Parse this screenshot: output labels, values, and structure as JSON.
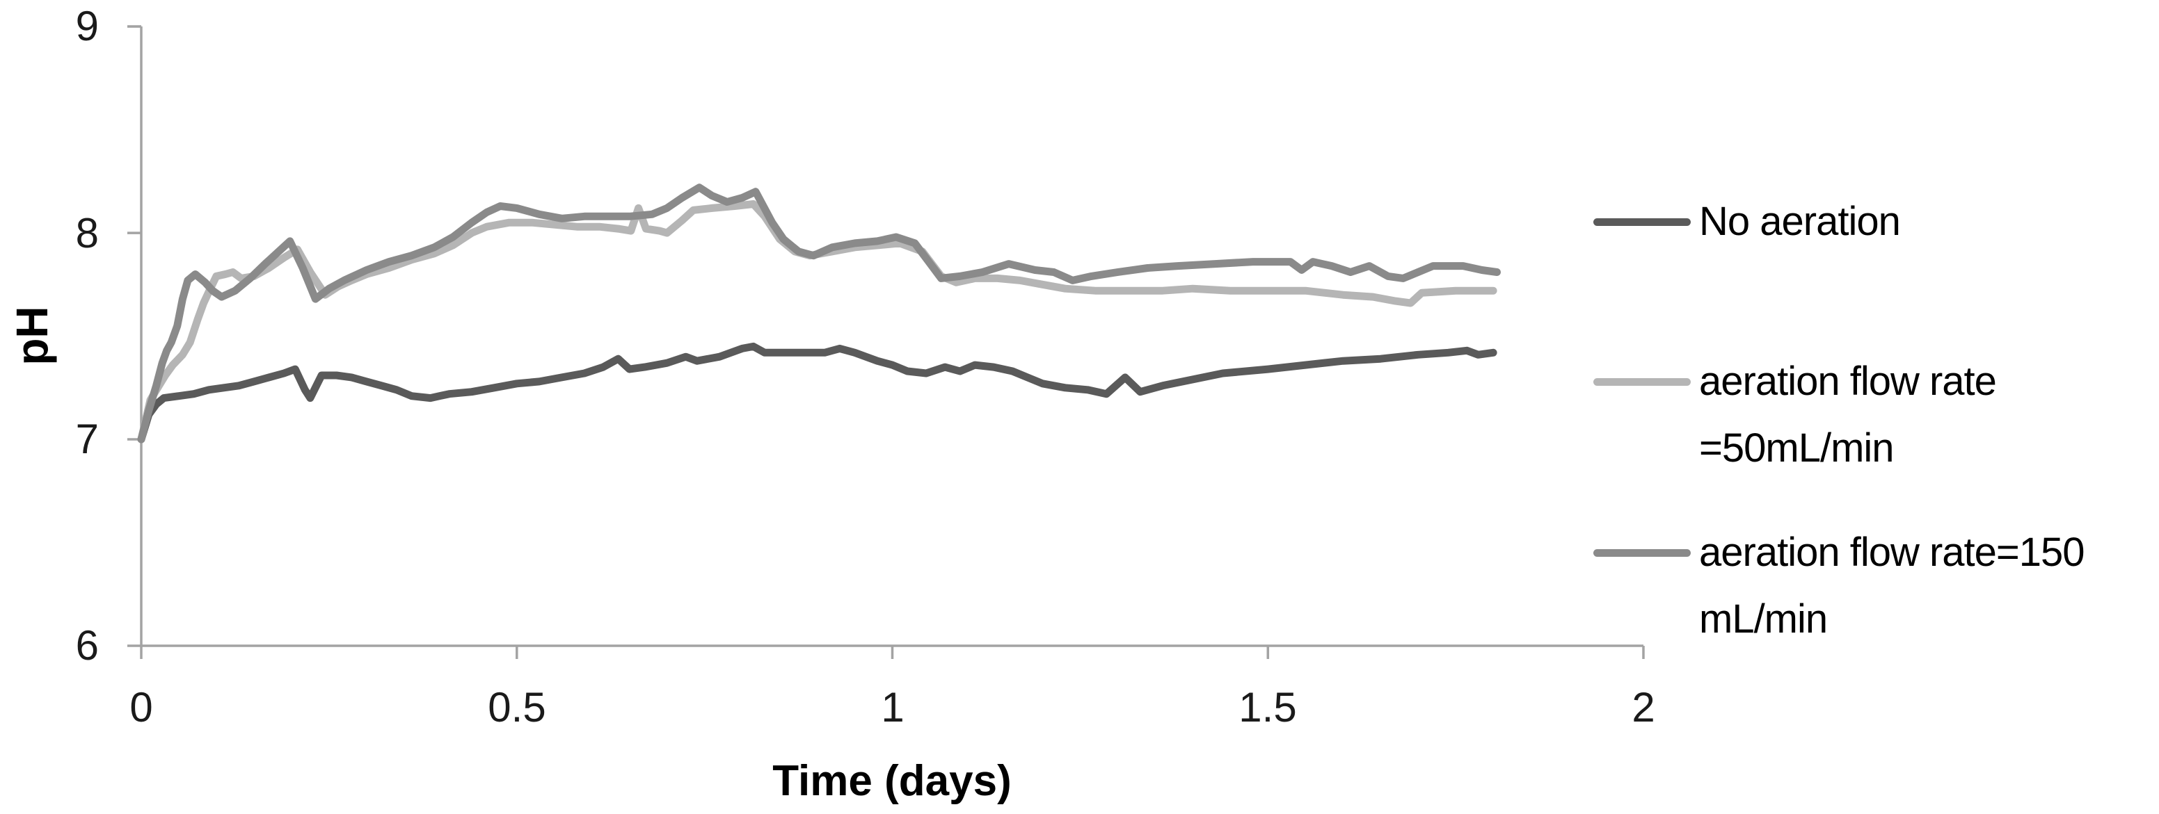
{
  "chart_data": {
    "type": "line",
    "title": "",
    "xlabel": "Time (days)",
    "ylabel": "pH",
    "xlim": [
      0,
      2
    ],
    "ylim": [
      6,
      9
    ],
    "grid": false,
    "legend_position": "right",
    "axis_color": "#a3a3a3",
    "text_color": "#1a1a1a",
    "x_ticks": [
      0,
      0.5,
      1,
      1.5,
      2
    ],
    "x_tick_labels": [
      "0",
      "0.5",
      "1",
      "1.5",
      "2"
    ],
    "y_ticks": [
      9,
      8,
      7,
      6
    ],
    "y_tick_labels": [
      "9",
      "8",
      "7",
      "6"
    ],
    "series": [
      {
        "name": "No aeration",
        "legend_line1": "No aeration",
        "legend_line2": "",
        "color": "#5a5a5a",
        "points": [
          [
            0,
            7.0
          ],
          [
            0.01,
            7.12
          ],
          [
            0.02,
            7.17
          ],
          [
            0.03,
            7.2
          ],
          [
            0.05,
            7.21
          ],
          [
            0.07,
            7.22
          ],
          [
            0.09,
            7.24
          ],
          [
            0.11,
            7.25
          ],
          [
            0.13,
            7.26
          ],
          [
            0.15,
            7.28
          ],
          [
            0.17,
            7.3
          ],
          [
            0.19,
            7.32
          ],
          [
            0.205,
            7.34
          ],
          [
            0.218,
            7.24
          ],
          [
            0.225,
            7.2
          ],
          [
            0.24,
            7.31
          ],
          [
            0.26,
            7.31
          ],
          [
            0.28,
            7.3
          ],
          [
            0.3,
            7.28
          ],
          [
            0.32,
            7.26
          ],
          [
            0.34,
            7.24
          ],
          [
            0.36,
            7.21
          ],
          [
            0.385,
            7.2
          ],
          [
            0.41,
            7.22
          ],
          [
            0.44,
            7.23
          ],
          [
            0.47,
            7.25
          ],
          [
            0.5,
            7.27
          ],
          [
            0.53,
            7.28
          ],
          [
            0.56,
            7.3
          ],
          [
            0.59,
            7.32
          ],
          [
            0.615,
            7.35
          ],
          [
            0.635,
            7.39
          ],
          [
            0.65,
            7.34
          ],
          [
            0.67,
            7.35
          ],
          [
            0.7,
            7.37
          ],
          [
            0.725,
            7.4
          ],
          [
            0.74,
            7.38
          ],
          [
            0.77,
            7.4
          ],
          [
            0.8,
            7.44
          ],
          [
            0.815,
            7.45
          ],
          [
            0.83,
            7.42
          ],
          [
            0.87,
            7.42
          ],
          [
            0.91,
            7.42
          ],
          [
            0.93,
            7.44
          ],
          [
            0.95,
            7.42
          ],
          [
            0.98,
            7.38
          ],
          [
            1.0,
            7.36
          ],
          [
            1.02,
            7.33
          ],
          [
            1.045,
            7.32
          ],
          [
            1.07,
            7.35
          ],
          [
            1.09,
            7.33
          ],
          [
            1.11,
            7.36
          ],
          [
            1.135,
            7.35
          ],
          [
            1.16,
            7.33
          ],
          [
            1.18,
            7.3
          ],
          [
            1.2,
            7.27
          ],
          [
            1.23,
            7.25
          ],
          [
            1.26,
            7.24
          ],
          [
            1.285,
            7.22
          ],
          [
            1.31,
            7.3
          ],
          [
            1.33,
            7.23
          ],
          [
            1.36,
            7.26
          ],
          [
            1.4,
            7.29
          ],
          [
            1.44,
            7.32
          ],
          [
            1.5,
            7.34
          ],
          [
            1.55,
            7.36
          ],
          [
            1.6,
            7.38
          ],
          [
            1.65,
            7.39
          ],
          [
            1.7,
            7.41
          ],
          [
            1.74,
            7.42
          ],
          [
            1.765,
            7.43
          ],
          [
            1.78,
            7.41
          ],
          [
            1.8,
            7.42
          ]
        ]
      },
      {
        "name": "aeration flow rate =50mL/min",
        "legend_line1": "aeration flow rate",
        "legend_line2": "=50mL/min",
        "color": "#b5b5b5",
        "points": [
          [
            0,
            7.0
          ],
          [
            0.012,
            7.19
          ],
          [
            0.022,
            7.25
          ],
          [
            0.032,
            7.31
          ],
          [
            0.042,
            7.36
          ],
          [
            0.055,
            7.41
          ],
          [
            0.065,
            7.47
          ],
          [
            0.075,
            7.58
          ],
          [
            0.083,
            7.66
          ],
          [
            0.092,
            7.73
          ],
          [
            0.1,
            7.79
          ],
          [
            0.112,
            7.8
          ],
          [
            0.122,
            7.81
          ],
          [
            0.133,
            7.78
          ],
          [
            0.15,
            7.79
          ],
          [
            0.17,
            7.83
          ],
          [
            0.19,
            7.88
          ],
          [
            0.208,
            7.92
          ],
          [
            0.225,
            7.81
          ],
          [
            0.245,
            7.7
          ],
          [
            0.262,
            7.74
          ],
          [
            0.28,
            7.77
          ],
          [
            0.3,
            7.8
          ],
          [
            0.33,
            7.83
          ],
          [
            0.36,
            7.87
          ],
          [
            0.39,
            7.9
          ],
          [
            0.415,
            7.94
          ],
          [
            0.44,
            8.0
          ],
          [
            0.46,
            8.03
          ],
          [
            0.49,
            8.05
          ],
          [
            0.52,
            8.05
          ],
          [
            0.55,
            8.04
          ],
          [
            0.58,
            8.03
          ],
          [
            0.61,
            8.03
          ],
          [
            0.635,
            8.02
          ],
          [
            0.652,
            8.01
          ],
          [
            0.662,
            8.12
          ],
          [
            0.672,
            8.02
          ],
          [
            0.69,
            8.01
          ],
          [
            0.7,
            8.0
          ],
          [
            0.72,
            8.06
          ],
          [
            0.735,
            8.11
          ],
          [
            0.76,
            8.12
          ],
          [
            0.79,
            8.13
          ],
          [
            0.815,
            8.14
          ],
          [
            0.83,
            8.08
          ],
          [
            0.85,
            7.97
          ],
          [
            0.87,
            7.91
          ],
          [
            0.89,
            7.89
          ],
          [
            0.92,
            7.91
          ],
          [
            0.95,
            7.93
          ],
          [
            0.98,
            7.94
          ],
          [
            1.01,
            7.95
          ],
          [
            1.04,
            7.91
          ],
          [
            1.065,
            7.79
          ],
          [
            1.085,
            7.76
          ],
          [
            1.11,
            7.78
          ],
          [
            1.14,
            7.78
          ],
          [
            1.17,
            7.77
          ],
          [
            1.2,
            7.75
          ],
          [
            1.23,
            7.73
          ],
          [
            1.27,
            7.72
          ],
          [
            1.31,
            7.72
          ],
          [
            1.36,
            7.72
          ],
          [
            1.4,
            7.73
          ],
          [
            1.45,
            7.72
          ],
          [
            1.5,
            7.72
          ],
          [
            1.55,
            7.72
          ],
          [
            1.6,
            7.7
          ],
          [
            1.64,
            7.69
          ],
          [
            1.67,
            7.67
          ],
          [
            1.69,
            7.66
          ],
          [
            1.705,
            7.71
          ],
          [
            1.75,
            7.72
          ],
          [
            1.8,
            7.72
          ]
        ]
      },
      {
        "name": "aeration flow rate=150 mL/min",
        "legend_line1": "aeration flow rate=150",
        "legend_line2": "mL/min",
        "color": "#8a8a8a",
        "points": [
          [
            0,
            7.0
          ],
          [
            0.01,
            7.14
          ],
          [
            0.02,
            7.26
          ],
          [
            0.028,
            7.37
          ],
          [
            0.034,
            7.43
          ],
          [
            0.04,
            7.47
          ],
          [
            0.048,
            7.55
          ],
          [
            0.055,
            7.68
          ],
          [
            0.062,
            7.77
          ],
          [
            0.072,
            7.8
          ],
          [
            0.085,
            7.76
          ],
          [
            0.095,
            7.72
          ],
          [
            0.107,
            7.69
          ],
          [
            0.125,
            7.72
          ],
          [
            0.145,
            7.78
          ],
          [
            0.165,
            7.85
          ],
          [
            0.183,
            7.91
          ],
          [
            0.198,
            7.96
          ],
          [
            0.215,
            7.83
          ],
          [
            0.232,
            7.68
          ],
          [
            0.25,
            7.73
          ],
          [
            0.27,
            7.77
          ],
          [
            0.3,
            7.82
          ],
          [
            0.33,
            7.86
          ],
          [
            0.36,
            7.89
          ],
          [
            0.39,
            7.93
          ],
          [
            0.415,
            7.98
          ],
          [
            0.44,
            8.05
          ],
          [
            0.46,
            8.1
          ],
          [
            0.478,
            8.13
          ],
          [
            0.5,
            8.12
          ],
          [
            0.53,
            8.09
          ],
          [
            0.56,
            8.07
          ],
          [
            0.59,
            8.08
          ],
          [
            0.62,
            8.08
          ],
          [
            0.65,
            8.08
          ],
          [
            0.68,
            8.09
          ],
          [
            0.7,
            8.12
          ],
          [
            0.72,
            8.17
          ],
          [
            0.743,
            8.22
          ],
          [
            0.76,
            8.18
          ],
          [
            0.78,
            8.15
          ],
          [
            0.8,
            8.17
          ],
          [
            0.818,
            8.2
          ],
          [
            0.84,
            8.05
          ],
          [
            0.855,
            7.97
          ],
          [
            0.875,
            7.91
          ],
          [
            0.895,
            7.89
          ],
          [
            0.92,
            7.93
          ],
          [
            0.95,
            7.95
          ],
          [
            0.98,
            7.96
          ],
          [
            1.005,
            7.98
          ],
          [
            1.03,
            7.95
          ],
          [
            1.065,
            7.78
          ],
          [
            1.09,
            7.79
          ],
          [
            1.12,
            7.81
          ],
          [
            1.155,
            7.85
          ],
          [
            1.19,
            7.82
          ],
          [
            1.215,
            7.81
          ],
          [
            1.24,
            7.77
          ],
          [
            1.265,
            7.79
          ],
          [
            1.3,
            7.81
          ],
          [
            1.34,
            7.83
          ],
          [
            1.38,
            7.84
          ],
          [
            1.43,
            7.85
          ],
          [
            1.48,
            7.86
          ],
          [
            1.53,
            7.86
          ],
          [
            1.545,
            7.82
          ],
          [
            1.56,
            7.86
          ],
          [
            1.585,
            7.84
          ],
          [
            1.61,
            7.81
          ],
          [
            1.635,
            7.84
          ],
          [
            1.66,
            7.79
          ],
          [
            1.68,
            7.78
          ],
          [
            1.7,
            7.81
          ],
          [
            1.72,
            7.84
          ],
          [
            1.76,
            7.84
          ],
          [
            1.785,
            7.82
          ],
          [
            1.805,
            7.81
          ]
        ]
      }
    ]
  }
}
